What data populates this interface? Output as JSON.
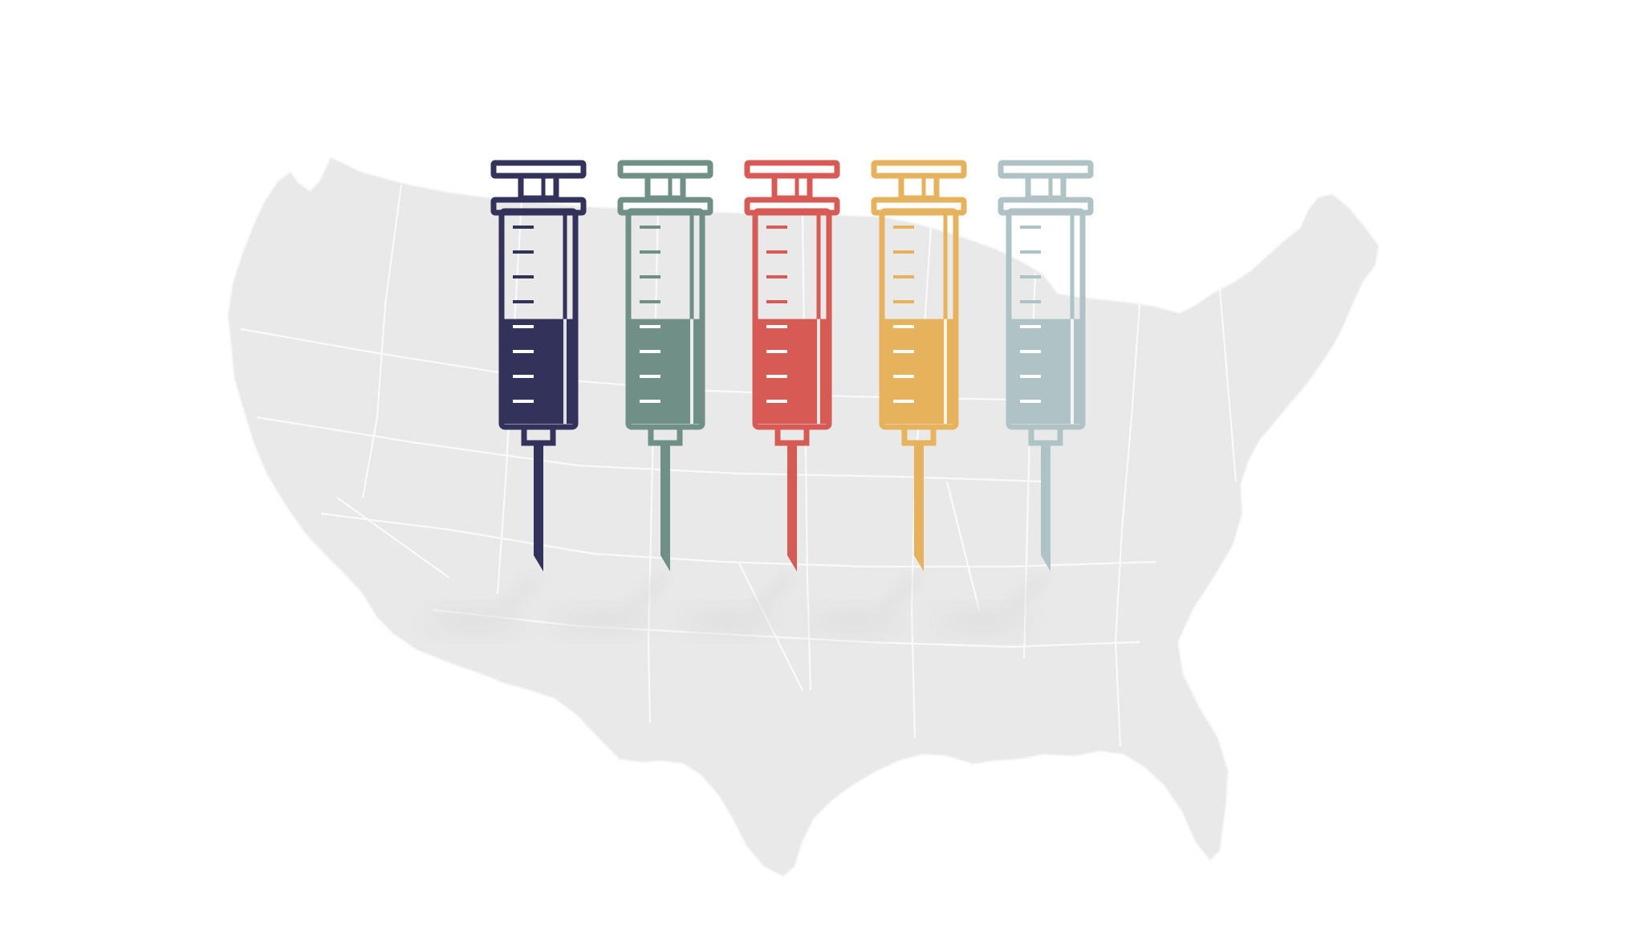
{
  "illustration": {
    "background_color": "#ffffff",
    "map": {
      "icon": "usa-map-icon",
      "fill_color": "#e9e9e9",
      "border_color": "#fafafa"
    },
    "shadow_color": "#dedede",
    "syringes": [
      {
        "icon": "syringe-icon",
        "color": "#33325a",
        "fill_level": 0.5
      },
      {
        "icon": "syringe-icon",
        "color": "#6f8f87",
        "fill_level": 0.5
      },
      {
        "icon": "syringe-icon",
        "color": "#d85a55",
        "fill_level": 0.5
      },
      {
        "icon": "syringe-icon",
        "color": "#e6b25c",
        "fill_level": 0.5
      },
      {
        "icon": "syringe-icon",
        "color": "#afc3c6",
        "fill_level": 0.5
      }
    ]
  }
}
